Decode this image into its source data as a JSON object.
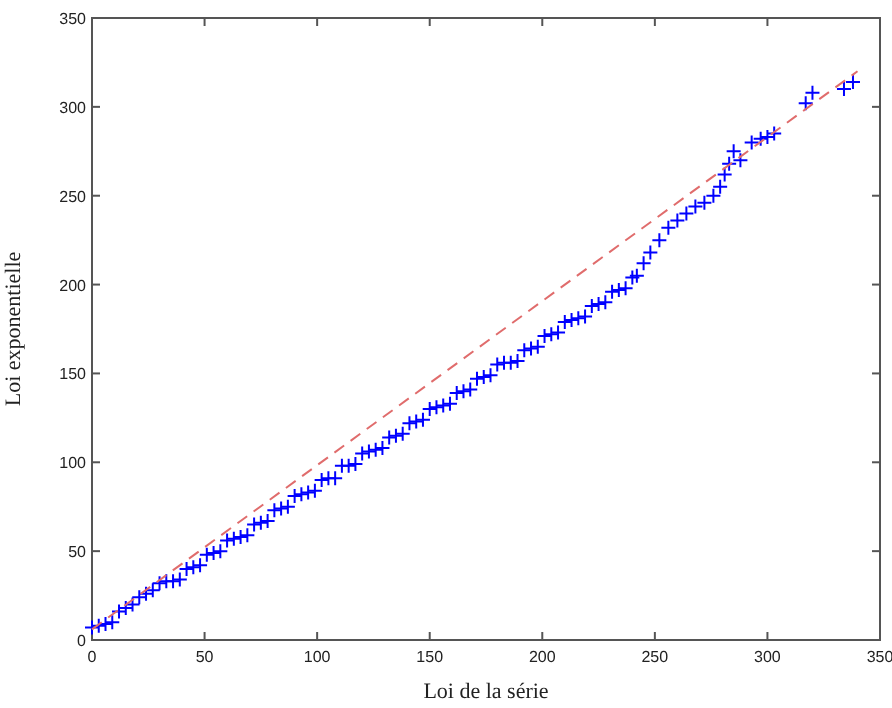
{
  "chart_data": {
    "type": "scatter",
    "xlabel": "Loi de la série",
    "ylabel": "Loi exponentielle",
    "xlim": [
      0,
      350
    ],
    "ylim": [
      0,
      350
    ],
    "xticks": [
      0,
      50,
      100,
      150,
      200,
      250,
      300,
      350
    ],
    "yticks": [
      0,
      50,
      100,
      150,
      200,
      250,
      300,
      350
    ],
    "grid": false,
    "series": [
      {
        "color": "#0000ff",
        "marker": "cross",
        "x": [
          0,
          3,
          6,
          9,
          12,
          15,
          18,
          21,
          24,
          27,
          30,
          33,
          36,
          39,
          42,
          45,
          48,
          51,
          54,
          57,
          60,
          63,
          66,
          69,
          72,
          75,
          78,
          81,
          84,
          87,
          90,
          93,
          96,
          99,
          102,
          105,
          108,
          111,
          114,
          117,
          120,
          123,
          126,
          129,
          132,
          135,
          138,
          141,
          144,
          147,
          150,
          153,
          156,
          159,
          162,
          165,
          168,
          171,
          174,
          177,
          180,
          183,
          186,
          189,
          192,
          195,
          198,
          201,
          204,
          207,
          210,
          213,
          216,
          219,
          222,
          225,
          228,
          231,
          234,
          237,
          240,
          242,
          245,
          248,
          252,
          256,
          260,
          264,
          268,
          272,
          276,
          279,
          281,
          283,
          285,
          288,
          293,
          297,
          300,
          303,
          317,
          320,
          334,
          338
        ],
        "values": [
          7,
          8,
          9,
          10,
          16,
          18,
          20,
          24,
          26,
          28,
          32,
          33,
          33,
          34,
          40,
          41,
          42,
          48,
          49,
          50,
          56,
          57,
          58,
          59,
          65,
          66,
          67,
          73,
          74,
          75,
          81,
          82,
          83,
          84,
          90,
          91,
          91,
          98,
          98,
          99,
          105,
          106,
          107,
          108,
          114,
          115,
          116,
          122,
          123,
          124,
          130,
          131,
          132,
          133,
          139,
          140,
          141,
          147,
          148,
          149,
          155,
          156,
          156,
          157,
          163,
          164,
          165,
          171,
          172,
          173,
          179,
          180,
          181,
          182,
          188,
          189,
          190,
          196,
          197,
          198,
          204,
          205,
          212,
          218,
          225,
          232,
          236,
          240,
          244,
          246,
          250,
          255,
          262,
          268,
          275,
          270,
          280,
          282,
          283,
          285,
          302,
          308,
          310,
          314
        ]
      },
      {
        "type": "line",
        "color": "#e06c6c",
        "line_style": "dashed",
        "marker": "none",
        "x": [
          0,
          340
        ],
        "values": [
          6,
          320
        ]
      }
    ]
  }
}
